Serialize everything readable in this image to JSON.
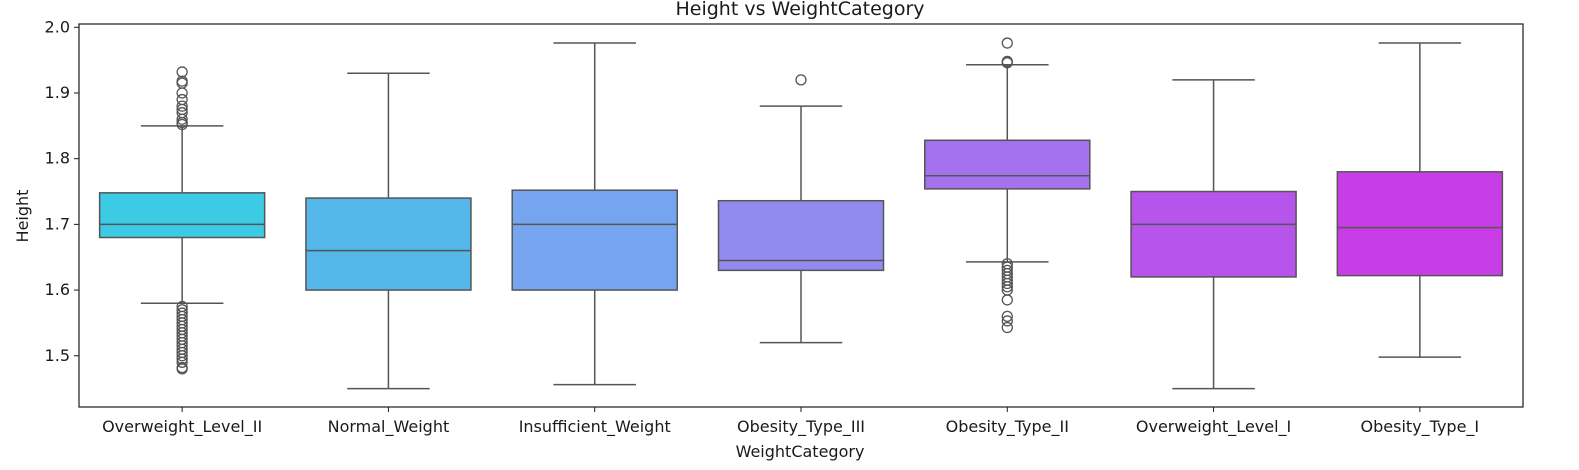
{
  "chart_data": {
    "type": "box",
    "title": "Height vs WeightCategory",
    "xlabel": "WeightCategory",
    "ylabel": "Height",
    "ylim": [
      1.422,
      2.005
    ],
    "yticks": [
      "1.5",
      "1.6",
      "1.7",
      "1.8",
      "1.9",
      "2.0"
    ],
    "grid": false,
    "categories": [
      "Overweight_Level_II",
      "Normal_Weight",
      "Insufficient_Weight",
      "Obesity_Type_III",
      "Obesity_Type_II",
      "Overweight_Level_I",
      "Obesity_Type_I"
    ],
    "boxes": [
      {
        "category": "Overweight_Level_II",
        "color": "#3ccbe5",
        "whislo": 1.58,
        "q1": 1.68,
        "med": 1.7,
        "q3": 1.748,
        "whishi": 1.85,
        "outliers": [
          1.932,
          1.918,
          1.915,
          1.9,
          1.89,
          1.88,
          1.875,
          1.87,
          1.86,
          1.855,
          1.852,
          1.575,
          1.57,
          1.565,
          1.56,
          1.555,
          1.55,
          1.545,
          1.54,
          1.535,
          1.53,
          1.525,
          1.52,
          1.515,
          1.51,
          1.505,
          1.5,
          1.495,
          1.49,
          1.482,
          1.48
        ]
      },
      {
        "category": "Normal_Weight",
        "color": "#55b6ea",
        "whislo": 1.45,
        "q1": 1.6,
        "med": 1.66,
        "q3": 1.74,
        "whishi": 1.93,
        "outliers": []
      },
      {
        "category": "Insufficient_Weight",
        "color": "#74a5ee",
        "whislo": 1.456,
        "q1": 1.6,
        "med": 1.7,
        "q3": 1.752,
        "whishi": 1.976,
        "outliers": []
      },
      {
        "category": "Obesity_Type_III",
        "color": "#918bf0",
        "whislo": 1.52,
        "q1": 1.63,
        "med": 1.645,
        "q3": 1.736,
        "whishi": 1.88,
        "outliers": [
          1.92
        ]
      },
      {
        "category": "Obesity_Type_II",
        "color": "#a472ef",
        "whislo": 1.643,
        "q1": 1.754,
        "med": 1.774,
        "q3": 1.828,
        "whishi": 1.943,
        "outliers": [
          1.976,
          1.948,
          1.946,
          1.64,
          1.635,
          1.63,
          1.625,
          1.62,
          1.615,
          1.61,
          1.605,
          1.6,
          1.585,
          1.56,
          1.553,
          1.543
        ]
      },
      {
        "category": "Overweight_Level_I",
        "color": "#b654ec",
        "whislo": 1.45,
        "q1": 1.62,
        "med": 1.7,
        "q3": 1.75,
        "whishi": 1.92,
        "outliers": []
      },
      {
        "category": "Obesity_Type_I",
        "color": "#c93de6",
        "whislo": 1.498,
        "q1": 1.622,
        "med": 1.695,
        "q3": 1.78,
        "whishi": 1.976,
        "outliers": []
      }
    ]
  }
}
